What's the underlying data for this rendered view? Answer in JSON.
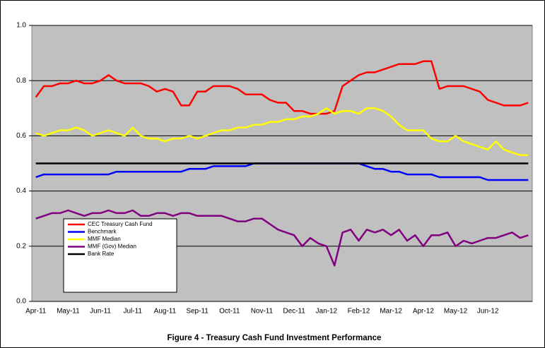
{
  "chart_data": {
    "type": "line",
    "title": "Figure 4  -  Treasury Cash Fund Investment Performance",
    "categories": [
      "Apr-11",
      null,
      null,
      null,
      "May-11",
      null,
      null,
      null,
      "Jun-11",
      null,
      null,
      null,
      "Jul-11",
      null,
      null,
      null,
      "Aug-11",
      null,
      null,
      null,
      "Sep-11",
      null,
      null,
      null,
      "Oct-11",
      null,
      null,
      null,
      "Nov-11",
      null,
      null,
      null,
      "Dec-11",
      null,
      null,
      null,
      "Jan-12",
      null,
      null,
      null,
      "Feb-12",
      null,
      null,
      null,
      "Mar-12",
      null,
      null,
      null,
      "Apr-12",
      null,
      null,
      null,
      "May-12",
      null,
      null,
      null,
      "Jun-12",
      null,
      null,
      null,
      null,
      null
    ],
    "series": [
      {
        "name": "CEC Treasury Cash Fund",
        "color": "#ff0000",
        "values": [
          0.74,
          0.78,
          0.78,
          0.79,
          0.79,
          0.8,
          0.79,
          0.79,
          0.8,
          0.82,
          0.8,
          0.79,
          0.79,
          0.79,
          0.78,
          0.76,
          0.77,
          0.76,
          0.71,
          0.71,
          0.76,
          0.76,
          0.78,
          0.78,
          0.78,
          0.77,
          0.75,
          0.75,
          0.75,
          0.73,
          0.72,
          0.72,
          0.69,
          0.69,
          0.68,
          0.68,
          0.68,
          0.69,
          0.78,
          0.8,
          0.82,
          0.83,
          0.83,
          0.84,
          0.85,
          0.86,
          0.86,
          0.86,
          0.87,
          0.87,
          0.77,
          0.78,
          0.78,
          0.78,
          0.77,
          0.76,
          0.73,
          0.72,
          0.71,
          0.71,
          0.71,
          0.72
        ]
      },
      {
        "name": "Benchmark",
        "color": "#0000ff",
        "values": [
          0.45,
          0.46,
          0.46,
          0.46,
          0.46,
          0.46,
          0.46,
          0.46,
          0.46,
          0.46,
          0.47,
          0.47,
          0.47,
          0.47,
          0.47,
          0.47,
          0.47,
          0.47,
          0.47,
          0.48,
          0.48,
          0.48,
          0.49,
          0.49,
          0.49,
          0.49,
          0.49,
          0.5,
          0.5,
          0.5,
          0.5,
          0.5,
          0.5,
          0.5,
          0.5,
          0.5,
          0.5,
          0.5,
          0.5,
          0.5,
          0.5,
          0.49,
          0.48,
          0.48,
          0.47,
          0.47,
          0.46,
          0.46,
          0.46,
          0.46,
          0.45,
          0.45,
          0.45,
          0.45,
          0.45,
          0.45,
          0.44,
          0.44,
          0.44,
          0.44,
          0.44,
          0.44
        ]
      },
      {
        "name": "MMF Median",
        "color": "#ffff00",
        "values": [
          0.61,
          0.6,
          0.61,
          0.62,
          0.62,
          0.63,
          0.62,
          0.6,
          0.61,
          0.62,
          0.61,
          0.6,
          0.63,
          0.6,
          0.59,
          0.59,
          0.58,
          0.59,
          0.59,
          0.6,
          0.59,
          0.6,
          0.61,
          0.62,
          0.62,
          0.63,
          0.63,
          0.64,
          0.64,
          0.65,
          0.65,
          0.66,
          0.66,
          0.67,
          0.67,
          0.68,
          0.7,
          0.68,
          0.69,
          0.69,
          0.68,
          0.7,
          0.7,
          0.69,
          0.67,
          0.64,
          0.62,
          0.62,
          0.62,
          0.59,
          0.58,
          0.58,
          0.6,
          0.58,
          0.57,
          0.56,
          0.55,
          0.58,
          0.55,
          0.54,
          0.53,
          0.53
        ]
      },
      {
        "name": "MMF (Gov) Median",
        "color": "#800080",
        "values": [
          0.3,
          0.31,
          0.32,
          0.32,
          0.33,
          0.32,
          0.31,
          0.32,
          0.32,
          0.33,
          0.32,
          0.32,
          0.33,
          0.31,
          0.31,
          0.32,
          0.32,
          0.31,
          0.32,
          0.32,
          0.31,
          0.31,
          0.31,
          0.31,
          0.3,
          0.29,
          0.29,
          0.3,
          0.3,
          0.28,
          0.26,
          0.25,
          0.24,
          0.2,
          0.23,
          0.21,
          0.2,
          0.13,
          0.25,
          0.26,
          0.22,
          0.26,
          0.25,
          0.26,
          0.24,
          0.26,
          0.22,
          0.24,
          0.2,
          0.24,
          0.24,
          0.25,
          0.2,
          0.22,
          0.21,
          0.22,
          0.23,
          0.23,
          0.24,
          0.25,
          0.23,
          0.24
        ]
      },
      {
        "name": "Bank Rate",
        "color": "#000000",
        "values": [
          0.5,
          0.5,
          0.5,
          0.5,
          0.5,
          0.5,
          0.5,
          0.5,
          0.5,
          0.5,
          0.5,
          0.5,
          0.5,
          0.5,
          0.5,
          0.5,
          0.5,
          0.5,
          0.5,
          0.5,
          0.5,
          0.5,
          0.5,
          0.5,
          0.5,
          0.5,
          0.5,
          0.5,
          0.5,
          0.5,
          0.5,
          0.5,
          0.5,
          0.5,
          0.5,
          0.5,
          0.5,
          0.5,
          0.5,
          0.5,
          0.5,
          0.5,
          0.5,
          0.5,
          0.5,
          0.5,
          0.5,
          0.5,
          0.5,
          0.5,
          0.5,
          0.5,
          0.5,
          0.5,
          0.5,
          0.5,
          0.5,
          0.5,
          0.5,
          0.5,
          0.5,
          0.5
        ]
      }
    ],
    "ylim": [
      0,
      1
    ],
    "yticks": [
      {
        "value": 0,
        "label": "0.0"
      },
      0.2,
      0.4,
      0.6,
      0.8,
      {
        "value": 1,
        "label": "1.0"
      }
    ],
    "grid": true,
    "plot_background": "#c0c0c0",
    "legend": "lower left"
  }
}
